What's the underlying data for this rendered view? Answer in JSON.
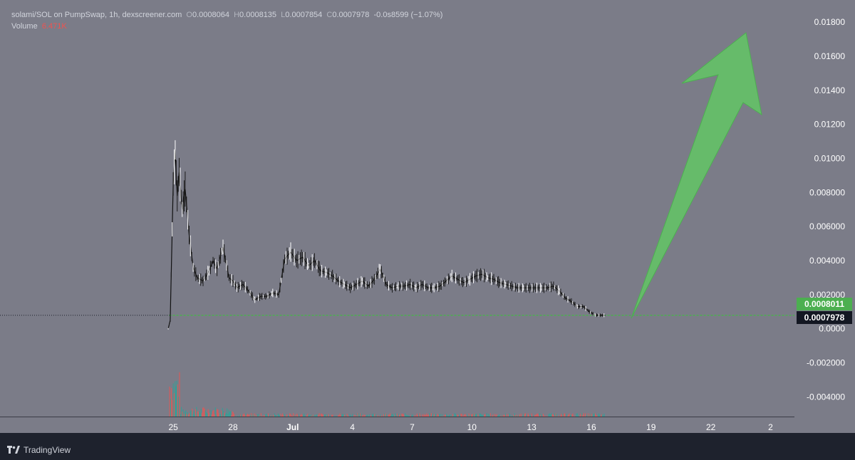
{
  "header": {
    "symbol": "solami/SOL on PumpSwap, 1h, dexscreener.com",
    "o_key": "O",
    "o_val": "0.0008064",
    "h_key": "H",
    "h_val": "0.0008135",
    "l_key": "L",
    "l_val": "0.0007854",
    "c_key": "C",
    "c_val": "0.0007978",
    "change": "-0.0s8599 (−1.07%)",
    "volume_label": "Volume",
    "volume_val": "6.471K"
  },
  "brand": "TradingView",
  "colors": {
    "background": "#7b7c88",
    "price_line": "#4caf50",
    "arrow": "#66bb6a",
    "candle": "#ffffff",
    "volume_down": "#ef5350",
    "volume_up": "#26a69a"
  },
  "chart_data": {
    "type": "line",
    "title": "solami/SOL on PumpSwap, 1h, dexscreener.com",
    "y_ticks": [
      "0.01800",
      "0.01600",
      "0.01400",
      "0.01200",
      "0.01000",
      "0.008000",
      "0.006000",
      "0.004000",
      "0.002000",
      "0.0000",
      "-0.002000",
      "-0.004000"
    ],
    "y_tick_values": [
      0.018,
      0.016,
      0.014,
      0.012,
      0.01,
      0.008,
      0.006,
      0.004,
      0.002,
      0,
      -0.002,
      -0.004
    ],
    "ylim": [
      -0.0052,
      0.0193
    ],
    "x_ticks": [
      "25",
      "28",
      "Jul",
      "4",
      "7",
      "10",
      "13",
      "16",
      "19",
      "22",
      "2"
    ],
    "x_tick_days": [
      25,
      28,
      31,
      34,
      37,
      40,
      43,
      46,
      49,
      52,
      55
    ],
    "xlim": [
      16.3,
      56.2
    ],
    "series": [
      {
        "values_x": [
          24.75,
          24.85,
          25.0,
          25.1,
          25.2,
          25.3,
          25.45,
          25.6,
          25.8,
          26.0,
          26.2,
          26.5,
          26.8,
          27.0,
          27.2,
          27.5,
          27.8,
          28.0,
          28.2,
          28.5,
          28.8,
          29.1,
          29.4,
          29.7,
          30.0,
          30.3,
          30.6,
          30.9,
          31.2,
          31.5,
          31.8,
          32.1,
          32.4,
          32.7,
          33.0,
          33.3,
          33.6,
          33.9,
          34.2,
          34.5,
          34.8,
          35.1,
          35.4,
          35.7,
          36.0,
          36.3,
          36.6,
          36.9,
          37.2,
          37.5,
          37.8,
          38.1,
          38.4,
          38.7,
          39.0,
          39.3,
          39.6,
          39.9,
          40.2,
          40.5,
          40.8,
          41.1,
          41.4,
          41.7,
          42.0,
          42.3,
          42.6,
          42.9,
          43.2,
          43.5,
          43.8,
          44.1,
          44.4,
          44.7,
          45.0,
          45.3,
          45.6,
          45.9,
          46.2,
          46.5,
          46.7
        ],
        "values": [
          0.0,
          0.0005,
          0.0085,
          0.0105,
          0.0078,
          0.0092,
          0.007,
          0.0082,
          0.0055,
          0.0036,
          0.003,
          0.0028,
          0.0034,
          0.004,
          0.0035,
          0.0048,
          0.003,
          0.0028,
          0.0024,
          0.0026,
          0.0022,
          0.0017,
          0.0019,
          0.0019,
          0.0021,
          0.002,
          0.0041,
          0.0045,
          0.004,
          0.0042,
          0.0037,
          0.004,
          0.0034,
          0.0033,
          0.0031,
          0.0028,
          0.0026,
          0.0024,
          0.0026,
          0.0028,
          0.0025,
          0.0029,
          0.0035,
          0.0026,
          0.0024,
          0.0025,
          0.0025,
          0.0026,
          0.0024,
          0.0026,
          0.0024,
          0.0024,
          0.0025,
          0.0028,
          0.0031,
          0.0029,
          0.0027,
          0.0029,
          0.0031,
          0.0032,
          0.003,
          0.0029,
          0.0027,
          0.0026,
          0.0025,
          0.0024,
          0.0024,
          0.0024,
          0.0024,
          0.0024,
          0.0024,
          0.0025,
          0.0022,
          0.0018,
          0.0016,
          0.0013,
          0.0013,
          0.001,
          0.0008,
          0.00079,
          0.00079
        ]
      }
    ],
    "current_price": "0.0007978",
    "price_marker": "0.0008011",
    "grid": false,
    "annotation": "up-arrow"
  }
}
